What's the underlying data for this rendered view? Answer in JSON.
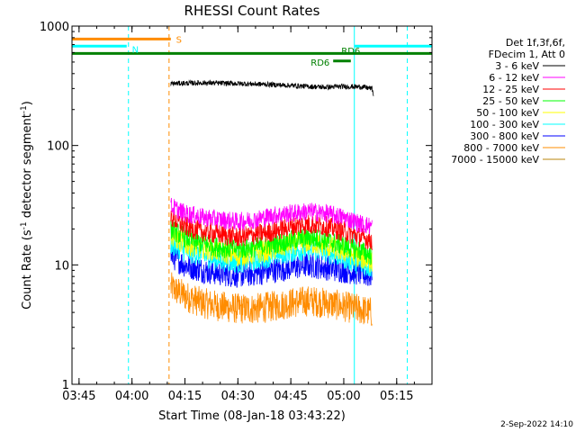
{
  "chart_data": {
    "type": "line",
    "title": "RHESSI Count Rates",
    "xlabel": "Start Time (08-Jan-18 03:43:22)",
    "ylabel_main": "Count Rate (s",
    "ylabel_sup1": "-1",
    "ylabel_mid": " detector segment",
    "ylabel_sup2": "-1",
    "ylabel_end": ")",
    "y_scale": "log",
    "ylim": [
      1,
      1000
    ],
    "xlim_minutes": [
      223,
      325
    ],
    "x_ticks": [
      {
        "minute": 225,
        "label": "03:45"
      },
      {
        "minute": 240,
        "label": "04:00"
      },
      {
        "minute": 255,
        "label": "04:15"
      },
      {
        "minute": 270,
        "label": "04:30"
      },
      {
        "minute": 285,
        "label": "04:45"
      },
      {
        "minute": 300,
        "label": "05:00"
      },
      {
        "minute": 315,
        "label": "05:15"
      }
    ],
    "y_ticks": [
      {
        "value": 1,
        "label": "1"
      },
      {
        "value": 10,
        "label": "10"
      },
      {
        "value": 100,
        "label": "100"
      },
      {
        "value": 1000,
        "label": "1000"
      }
    ],
    "legend_header": [
      "Det 1f,3f,6f,",
      "FDecim 1, Att 0"
    ],
    "data_start_minute": 251,
    "data_end_minute": 308.5,
    "series": [
      {
        "name": "3 - 6 keV",
        "color": "#000000",
        "noise": 0.05,
        "points": [
          [
            251,
            330
          ],
          [
            260,
            335
          ],
          [
            270,
            330
          ],
          [
            278,
            325
          ],
          [
            285,
            318
          ],
          [
            290,
            312
          ],
          [
            295,
            308
          ],
          [
            300,
            312
          ],
          [
            305,
            310
          ],
          [
            308,
            300
          ],
          [
            308.5,
            260
          ]
        ]
      },
      {
        "name": "6 - 12 keV",
        "color": "#ff00ff",
        "noise": 0.18,
        "points": [
          [
            251,
            31
          ],
          [
            255,
            27
          ],
          [
            260,
            25
          ],
          [
            265,
            24
          ],
          [
            270,
            23
          ],
          [
            275,
            24
          ],
          [
            280,
            26
          ],
          [
            285,
            27
          ],
          [
            290,
            28
          ],
          [
            295,
            27
          ],
          [
            300,
            25
          ],
          [
            305,
            22
          ],
          [
            308,
            21
          ]
        ]
      },
      {
        "name": "12 - 25 keV",
        "color": "#ff0000",
        "noise": 0.2,
        "points": [
          [
            251,
            25
          ],
          [
            255,
            21
          ],
          [
            260,
            19
          ],
          [
            265,
            18
          ],
          [
            270,
            17
          ],
          [
            275,
            18
          ],
          [
            280,
            19
          ],
          [
            285,
            21
          ],
          [
            290,
            22
          ],
          [
            295,
            21
          ],
          [
            300,
            19
          ],
          [
            305,
            17
          ],
          [
            308,
            16
          ]
        ]
      },
      {
        "name": "25 - 50 keV",
        "color": "#00ff00",
        "noise": 0.2,
        "points": [
          [
            251,
            20
          ],
          [
            255,
            17
          ],
          [
            260,
            15
          ],
          [
            265,
            14
          ],
          [
            270,
            13.5
          ],
          [
            275,
            14
          ],
          [
            280,
            15
          ],
          [
            285,
            16
          ],
          [
            290,
            17
          ],
          [
            295,
            16
          ],
          [
            300,
            14.5
          ],
          [
            305,
            13
          ],
          [
            308,
            12
          ]
        ]
      },
      {
        "name": "50 - 100 keV",
        "color": "#ffff00",
        "noise": 0.22,
        "points": [
          [
            251,
            18
          ],
          [
            255,
            15
          ],
          [
            260,
            14
          ],
          [
            265,
            13
          ],
          [
            270,
            12
          ],
          [
            275,
            12.5
          ],
          [
            280,
            13.5
          ],
          [
            285,
            15
          ],
          [
            290,
            15.5
          ],
          [
            295,
            14.5
          ],
          [
            300,
            13
          ],
          [
            305,
            11.5
          ],
          [
            308,
            10.5
          ]
        ]
      },
      {
        "name": "100 - 300 keV",
        "color": "#00ffff",
        "noise": 0.22,
        "points": [
          [
            251,
            15
          ],
          [
            255,
            13
          ],
          [
            260,
            12
          ],
          [
            265,
            11
          ],
          [
            270,
            10.5
          ],
          [
            275,
            11
          ],
          [
            280,
            12
          ],
          [
            285,
            13
          ],
          [
            290,
            13.5
          ],
          [
            295,
            13
          ],
          [
            300,
            11.5
          ],
          [
            305,
            10
          ],
          [
            308,
            9.5
          ]
        ]
      },
      {
        "name": "300 - 800 keV",
        "color": "#0000ff",
        "noise": 0.25,
        "points": [
          [
            251,
            12
          ],
          [
            255,
            10
          ],
          [
            260,
            9
          ],
          [
            265,
            8.5
          ],
          [
            270,
            8.2
          ],
          [
            275,
            8.5
          ],
          [
            280,
            9
          ],
          [
            285,
            9.5
          ],
          [
            290,
            10
          ],
          [
            295,
            9.5
          ],
          [
            300,
            9
          ],
          [
            305,
            8.5
          ],
          [
            308,
            8
          ]
        ]
      },
      {
        "name": "800 - 7000 keV",
        "color": "#ff8c00",
        "noise": 0.3,
        "points": [
          [
            251,
            6.5
          ],
          [
            255,
            5.5
          ],
          [
            260,
            4.8
          ],
          [
            265,
            4.5
          ],
          [
            270,
            4.3
          ],
          [
            275,
            4.3
          ],
          [
            280,
            4.5
          ],
          [
            285,
            4.8
          ],
          [
            290,
            5
          ],
          [
            295,
            4.8
          ],
          [
            300,
            4.5
          ],
          [
            305,
            4.2
          ],
          [
            308,
            4
          ]
        ]
      },
      {
        "name": "7000 - 15000 keV",
        "color": "#b8860b",
        "noise": 0.0,
        "points": []
      }
    ],
    "attenuator_bars": [
      {
        "label": "S",
        "color": "#ff8c00",
        "x0": 223,
        "x1": 251,
        "value": 780
      },
      {
        "label": "N",
        "color": "#00ffff",
        "x0": 223,
        "x1": 238.5,
        "value": 680
      },
      {
        "label": "N",
        "color": "#00ffff",
        "x0": 303,
        "x1": 325,
        "value": 680
      },
      {
        "label": "",
        "color": "#008000",
        "x0": 223,
        "x1": 325,
        "value": 590
      },
      {
        "label": "RD6",
        "color": "#008000",
        "x0": 297,
        "x1": 302,
        "value": 510
      }
    ],
    "bar_labels": [
      {
        "text": "S",
        "color": "#ff8c00",
        "minute": 252.5,
        "value": 780,
        "anchor": "start"
      },
      {
        "text": "N",
        "color": "#00ffff",
        "minute": 240,
        "value": 640,
        "anchor": "start"
      },
      {
        "text": "RD6",
        "color": "#008000",
        "minute": 302,
        "value": 625,
        "anchor": "middle"
      },
      {
        "text": "RD6",
        "color": "#008000",
        "minute": 296,
        "value": 500,
        "anchor": "end"
      }
    ],
    "vertical_lines": [
      {
        "minute": 223,
        "color": "#00ffff",
        "dash": false
      },
      {
        "minute": 239,
        "color": "#00ffff",
        "dash": true
      },
      {
        "minute": 250.5,
        "color": "#ff8c00",
        "dash": true
      },
      {
        "minute": 303,
        "color": "#00ffff",
        "dash": false
      },
      {
        "minute": 318,
        "color": "#00ffff",
        "dash": true
      }
    ]
  },
  "footer": {
    "date": "2-Sep-2022 14:10"
  }
}
